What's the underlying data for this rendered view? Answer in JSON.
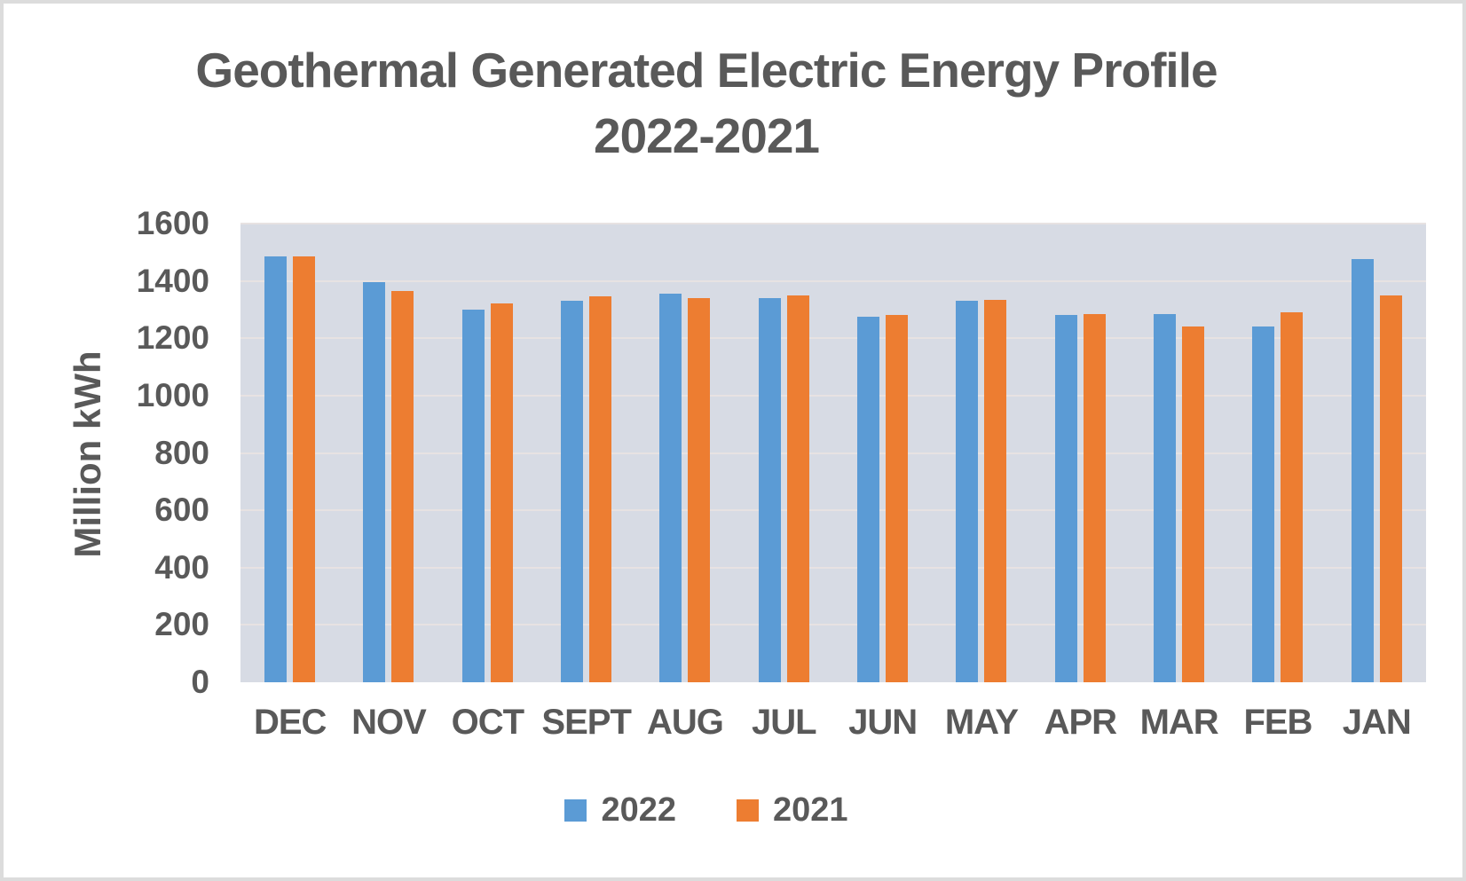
{
  "chart": {
    "title_line1": "Geothermal Generated Electric Energy Profile",
    "title_line2": "2022-2021"
  },
  "chart_data": {
    "type": "bar",
    "title": "Geothermal Generated Electric Energy Profile 2022-2021",
    "xlabel": "",
    "ylabel": "Million kWh",
    "ylim": [
      0,
      1600
    ],
    "yticks": [
      0,
      200,
      400,
      600,
      800,
      1000,
      1200,
      1400,
      1600
    ],
    "grid": true,
    "legend_position": "bottom",
    "plot_background": "#d7dbe4",
    "categories": [
      "DEC",
      "NOV",
      "OCT",
      "SEPT",
      "AUG",
      "JUL",
      "JUN",
      "MAY",
      "APR",
      "MAR",
      "FEB",
      "JAN"
    ],
    "series": [
      {
        "name": "2022",
        "color": "#5B9BD5",
        "values": [
          1485,
          1395,
          1300,
          1330,
          1355,
          1340,
          1275,
          1330,
          1280,
          1285,
          1240,
          1475
        ]
      },
      {
        "name": "2021",
        "color": "#ED7D31",
        "values": [
          1485,
          1365,
          1320,
          1345,
          1340,
          1350,
          1280,
          1335,
          1285,
          1240,
          1290,
          1350
        ]
      }
    ]
  }
}
